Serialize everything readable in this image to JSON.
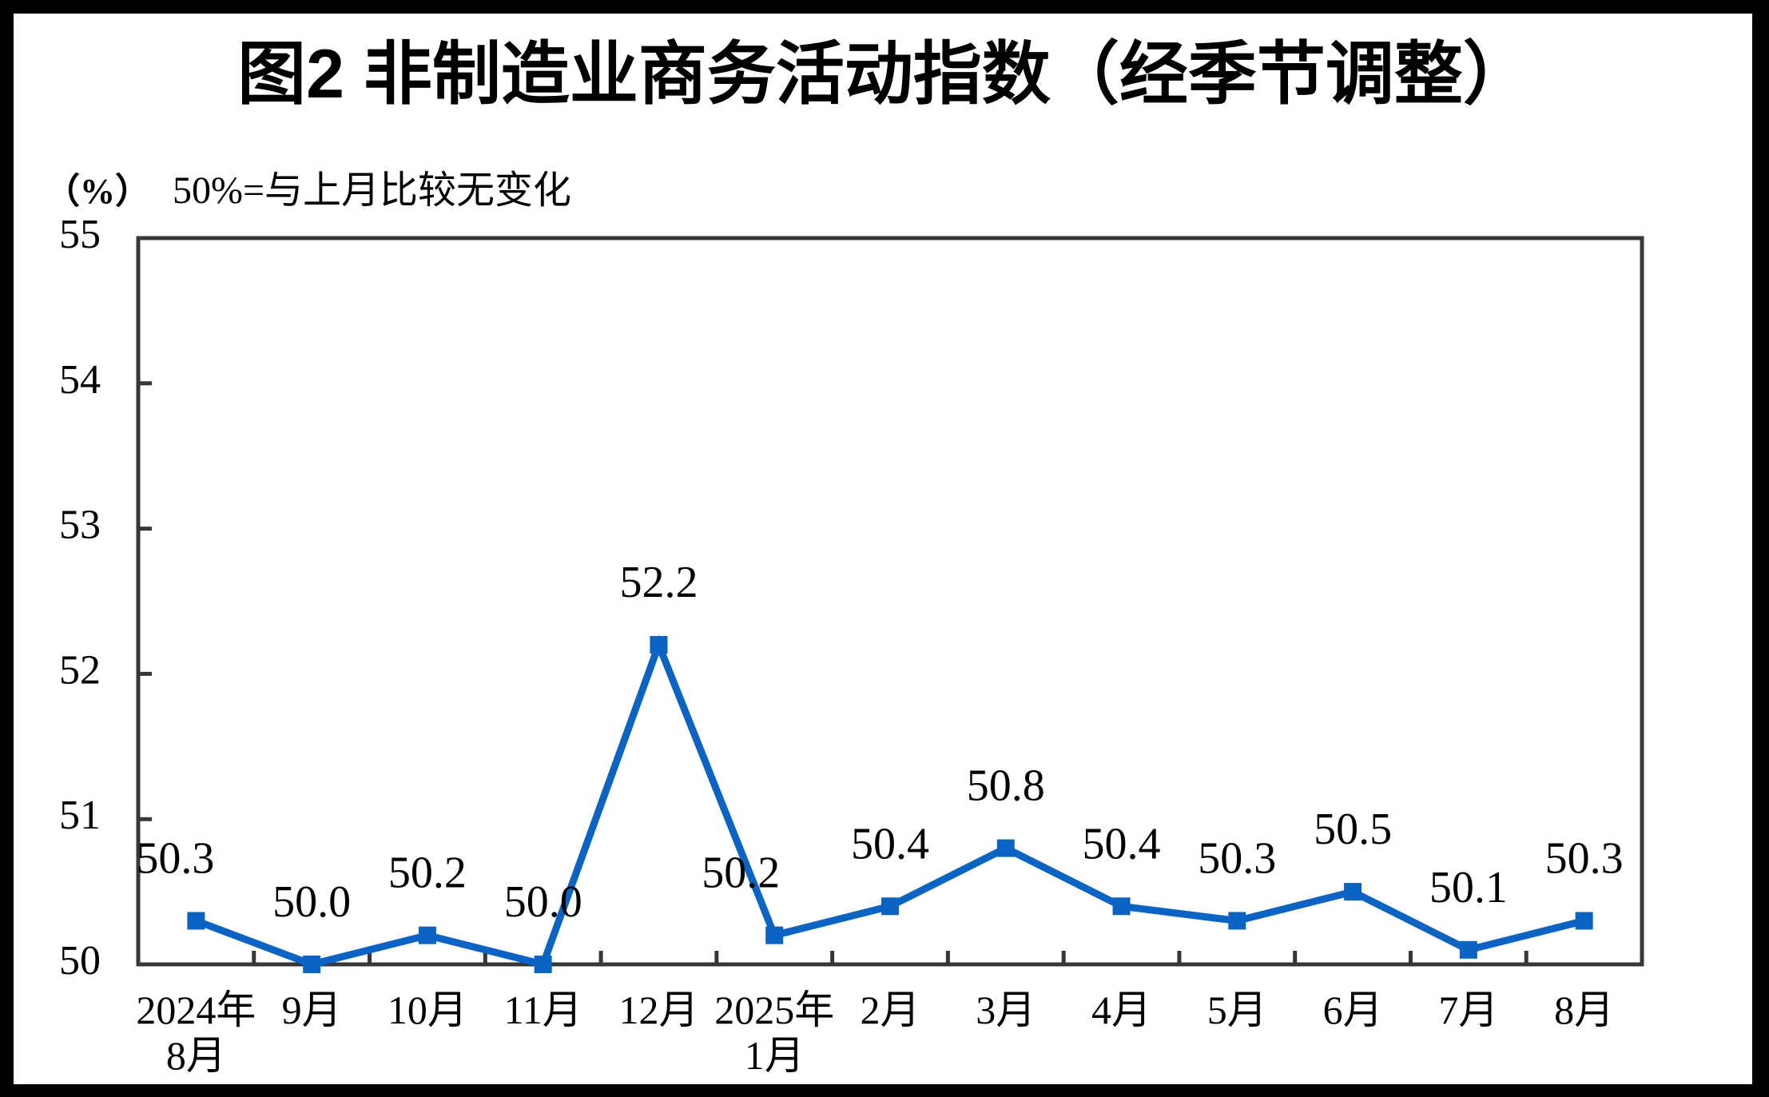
{
  "page": {
    "title": "图2 非制造业商务活动指数（经季节调整）",
    "unit_label": "（%）",
    "note": "50%=与上月比较无变化"
  },
  "chart_data": {
    "type": "line",
    "title": "图2 非制造业商务活动指数（经季节调整）",
    "note": "50%=与上月比较无变化",
    "unit": "%",
    "categories": [
      [
        "2024年",
        "8月"
      ],
      [
        "9月"
      ],
      [
        "10月"
      ],
      [
        "11月"
      ],
      [
        "12月"
      ],
      [
        "2025年",
        "1月"
      ],
      [
        "2月"
      ],
      [
        "3月"
      ],
      [
        "4月"
      ],
      [
        "5月"
      ],
      [
        "6月"
      ],
      [
        "7月"
      ],
      [
        "8月"
      ]
    ],
    "values": [
      50.3,
      50.0,
      50.2,
      50.0,
      52.2,
      50.2,
      50.4,
      50.8,
      50.4,
      50.3,
      50.5,
      50.1,
      50.3
    ],
    "point_labels": [
      "50.3",
      "50.0",
      "50.2",
      "50.0",
      "52.2",
      "50.2",
      "50.4",
      "50.8",
      "50.4",
      "50.3",
      "50.5",
      "50.1",
      "50.3"
    ],
    "ylim": [
      50,
      55
    ],
    "yticks": [
      50,
      51,
      52,
      53,
      54,
      55
    ],
    "grid": false,
    "legend": "none",
    "marker": "square",
    "colors": {
      "line": "#0B63C4",
      "frame": "#373737",
      "text": "#000000",
      "background": "#FFFFFF",
      "outer_border": "#000000"
    }
  }
}
